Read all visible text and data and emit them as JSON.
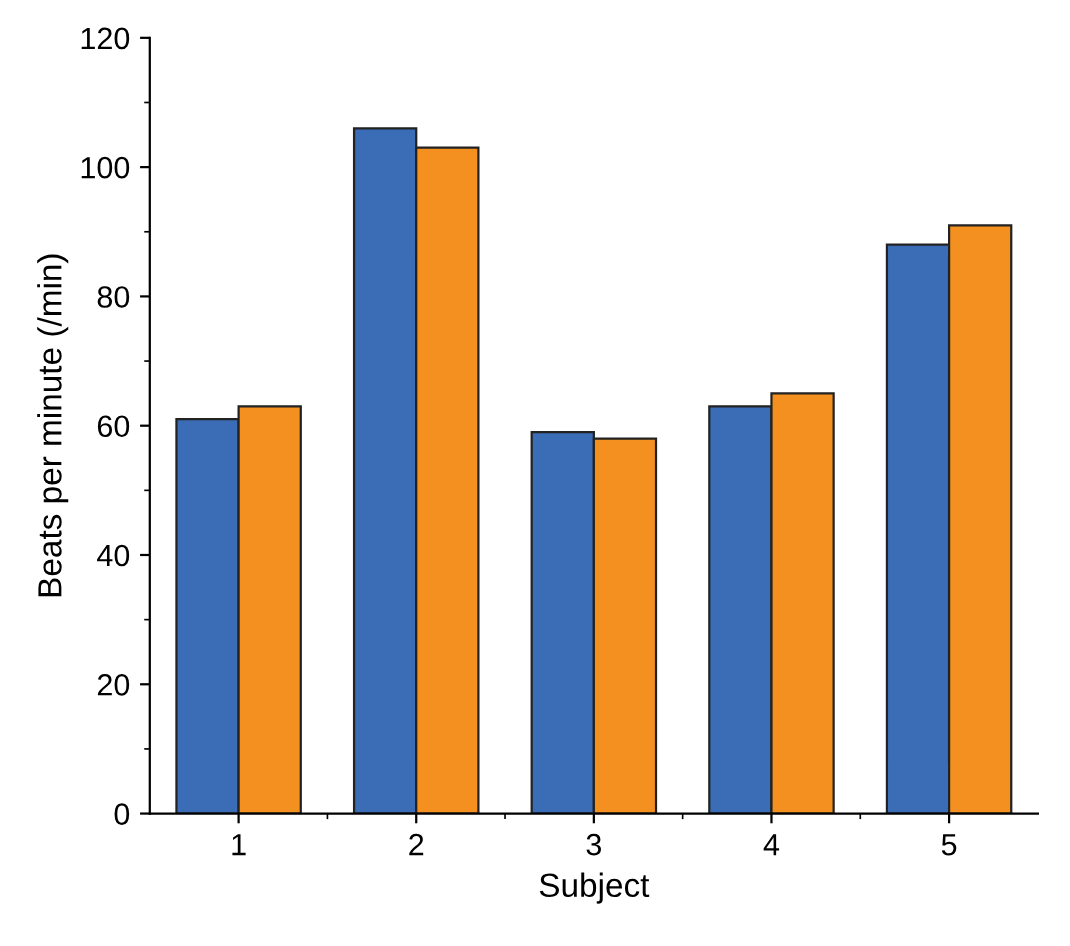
{
  "chart_data": {
    "type": "bar",
    "xlabel": "Subject",
    "ylabel": "Beats per minute (/min)",
    "categories": [
      "1",
      "2",
      "3",
      "4",
      "5"
    ],
    "series": [
      {
        "color": "#3a6db5",
        "values": [
          61,
          106,
          59,
          63,
          88
        ]
      },
      {
        "color": "#f39020",
        "values": [
          63,
          103,
          58,
          65,
          91
        ]
      }
    ],
    "ylim": [
      0,
      120
    ],
    "yticks": [
      0,
      20,
      40,
      60,
      80,
      100,
      120
    ],
    "grid": false
  }
}
